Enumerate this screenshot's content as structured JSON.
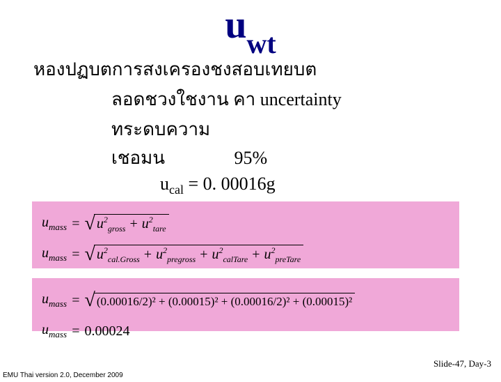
{
  "title_main": "u",
  "title_sub": "wt",
  "thai_line1": "หองปฏบตการสงเครองชงสอบเทยบต",
  "thai_line2_a": "ลอดชวงใชงาน  คา  uncertainty",
  "thai_line3_a": "ทระดบความเชอมน",
  "thai_line3_b": "95%",
  "eq1_prefix": "u",
  "eq1_sub": "cal",
  "eq1_rest": " = 0. 00016g",
  "pink1": {
    "lhs": "u",
    "lhs_sub": "mass",
    "row1_terms": [
      {
        "u": "u",
        "sub": "gross",
        "sup": "2"
      },
      {
        "u": "u",
        "sub": "tare",
        "sup": "2"
      }
    ],
    "row2_terms": [
      {
        "u": "u",
        "sub": "cal.Gross",
        "sup": "2"
      },
      {
        "u": "u",
        "sub": "pregross",
        "sup": "2"
      },
      {
        "u": "u",
        "sub": "calTare",
        "sup": "2"
      },
      {
        "u": "u",
        "sub": "preTare",
        "sup": "2"
      }
    ]
  },
  "pink2": {
    "lhs": "u",
    "lhs_sub": "mass",
    "row1_expr": "(0.00016/2)² + (0.00015)² + (0.00016/2)² + (0.00015)²",
    "row2_val": "0.00024"
  },
  "footer_right_a": "Slide-",
  "footer_right_b": "47",
  "footer_right_c": ", Day-3",
  "footer_left": "EMU Thai version 2.0, December 2009",
  "colors": {
    "title": "#000080",
    "pink": "#f0a8d8",
    "text": "#000000"
  }
}
